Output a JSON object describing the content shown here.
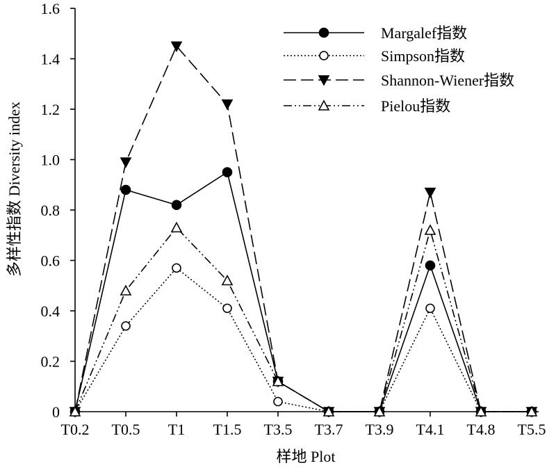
{
  "chart_data": {
    "type": "line",
    "title": "",
    "xlabel": "样地 Plot",
    "ylabel": "多样性指数 Diversity index",
    "categories": [
      "T0.2",
      "T0.5",
      "T1",
      "T1.5",
      "T3.5",
      "T3.7",
      "T3.9",
      "T4.1",
      "T4.8",
      "T5.5"
    ],
    "ylim": [
      0,
      1.6
    ],
    "yticks": [
      0,
      0.2,
      0.4,
      0.6,
      0.8,
      1.0,
      1.2,
      1.4,
      1.6
    ],
    "ytick_labels": [
      "0",
      "0.2",
      "0.4",
      "0.6",
      "0.8",
      "1.0",
      "1.2",
      "1.4",
      "1.6"
    ],
    "grid": false,
    "legend_position": "top-right",
    "series": [
      {
        "name": "Margalef指数",
        "marker": "filled-circle",
        "line": "solid",
        "values": [
          0,
          0.88,
          0.82,
          0.95,
          0.12,
          0,
          0,
          0.58,
          0,
          0
        ]
      },
      {
        "name": "Simpson指数",
        "marker": "open-circle",
        "line": "dotted",
        "values": [
          0,
          0.34,
          0.57,
          0.41,
          0.04,
          0,
          0,
          0.41,
          0,
          0
        ]
      },
      {
        "name": "Shannon-Wiener指数",
        "marker": "filled-triangle-down",
        "line": "dashed",
        "values": [
          0,
          0.99,
          1.45,
          1.22,
          0.12,
          0,
          0,
          0.87,
          0,
          0
        ]
      },
      {
        "name": "Pielou指数",
        "marker": "open-triangle-up",
        "line": "dash-dot-dot",
        "values": [
          0,
          0.48,
          0.73,
          0.52,
          0.12,
          0,
          0,
          0.72,
          0,
          0
        ]
      }
    ]
  }
}
